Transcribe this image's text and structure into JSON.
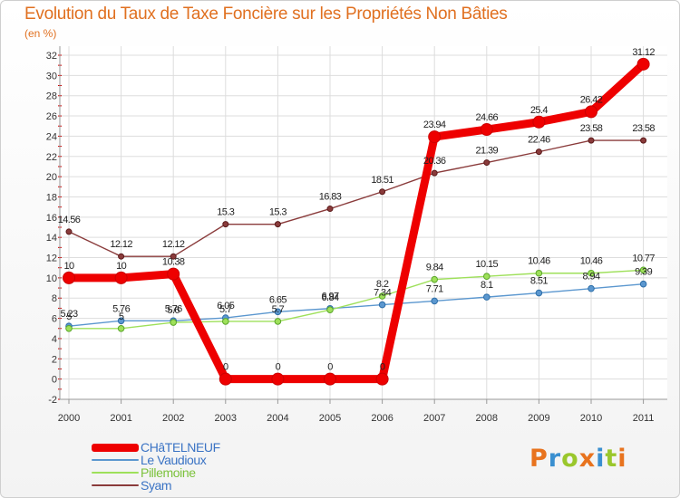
{
  "header": {
    "title": "Evolution du Taux de Taxe Foncière sur les Propriétés Non Bâties",
    "unit": "(en %)"
  },
  "brand": {
    "letters": [
      "P",
      "r",
      "o",
      "x",
      "i",
      "t",
      "i"
    ],
    "colors": [
      "#e8731e",
      "#3a8fd0",
      "#9ac72c",
      "#e8731e",
      "#3a8fd0",
      "#9ac72c",
      "#e8731e"
    ]
  },
  "chart_data": {
    "type": "line",
    "title": "Evolution du Taux de Taxe Foncière sur les Propriétés Non Bâties",
    "ylabel": "(en %)",
    "xlabel": "",
    "categories": [
      "2000",
      "2001",
      "2002",
      "2003",
      "2004",
      "2005",
      "2006",
      "2007",
      "2008",
      "2009",
      "2010",
      "2011"
    ],
    "ylim": [
      -2,
      32
    ],
    "yticks": [
      "-2",
      "0",
      "2",
      "4",
      "6",
      "8",
      "10",
      "12",
      "14",
      "16",
      "18",
      "20",
      "22",
      "24",
      "26",
      "28",
      "30",
      "32"
    ],
    "grid": true,
    "legend_position": "bottom-left",
    "series": [
      {
        "name": "CHâTELNEUF",
        "color": "#ee0000",
        "values": [
          10,
          10,
          10.38,
          0,
          0,
          0,
          0,
          23.94,
          24.66,
          25.4,
          26.42,
          31.12
        ],
        "labels": [
          "10",
          "10",
          "10.38",
          "0",
          "0",
          "0",
          "0",
          "23.94",
          "24.66",
          "25.4",
          "26.42",
          "31.12"
        ]
      },
      {
        "name": "Le Vaudioux",
        "color": "#5b97cf",
        "values": [
          5.23,
          5.76,
          5.76,
          6.05,
          6.65,
          6.97,
          7.34,
          7.71,
          8.1,
          8.51,
          8.94,
          9.39
        ],
        "labels": [
          "5.23",
          "5.76",
          "5.76",
          "6.05",
          "6.65",
          "6.97",
          "7.34",
          "7.71",
          "8.1",
          "8.51",
          "8.94",
          "9.39"
        ]
      },
      {
        "name": "Pillemoine",
        "color": "#9ee05a",
        "values": [
          5,
          5,
          5.6,
          5.7,
          5.7,
          6.84,
          8.2,
          9.84,
          10.15,
          10.46,
          10.46,
          10.77
        ],
        "labels": [
          "5",
          "5",
          "5.6",
          "5.7",
          "5.7",
          "6.84",
          "8.2",
          "9.84",
          "10.15",
          "10.46",
          "10.46",
          "10.77"
        ]
      },
      {
        "name": "Syam",
        "color": "#8a3b3b",
        "values": [
          14.56,
          12.12,
          12.12,
          15.3,
          15.3,
          16.83,
          18.51,
          20.36,
          21.39,
          22.46,
          23.58,
          23.58
        ],
        "labels": [
          "14.56",
          "12.12",
          "12.12",
          "15.3",
          "15.3",
          "16.83",
          "18.51",
          "20.36",
          "21.39",
          "22.46",
          "23.58",
          "23.58"
        ]
      }
    ]
  }
}
